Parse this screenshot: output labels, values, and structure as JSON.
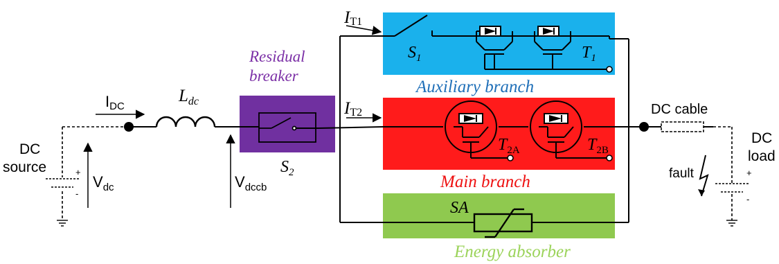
{
  "labels": {
    "dc_source_line1": "DC",
    "dc_source_line2": "source",
    "dc_load_line1": "DC",
    "dc_load_line2": "load",
    "dc_cable": "DC cable",
    "fault": "fault",
    "residual_line1": "Residual",
    "residual_line2": "breaker",
    "aux_branch": "Auxiliary branch",
    "main_branch": "Main branch",
    "energy_absorber": "Energy absorber",
    "v_main": "V",
    "v_dc_sub": "dc",
    "v_dccb_sub": "dccb",
    "i_main": "I",
    "i_dc_sub": "DC",
    "i_t1_sub": "T1",
    "i_t2_sub": "T2",
    "l_main": "L",
    "l_sub": "dc",
    "s1_main": "S",
    "s1_sub": "1",
    "s2_main": "S",
    "s2_sub": "2",
    "t1_main": "T",
    "t1_sub": "1",
    "t2a_main": "T",
    "t2a_sub": "2A",
    "t2b_main": "T",
    "t2b_sub": "2B",
    "sa": "SA",
    "plus": "+",
    "minus": "-"
  },
  "colors": {
    "auxiliary": "#1ab1ec",
    "main": "#ff1b1b",
    "absorber": "#8fc94f",
    "residual": "#7030a0",
    "aux_text": "#1f6fb8",
    "main_text": "#ee1111",
    "absorber_text": "#9bd35a",
    "residual_text": "#7b2fa6"
  }
}
